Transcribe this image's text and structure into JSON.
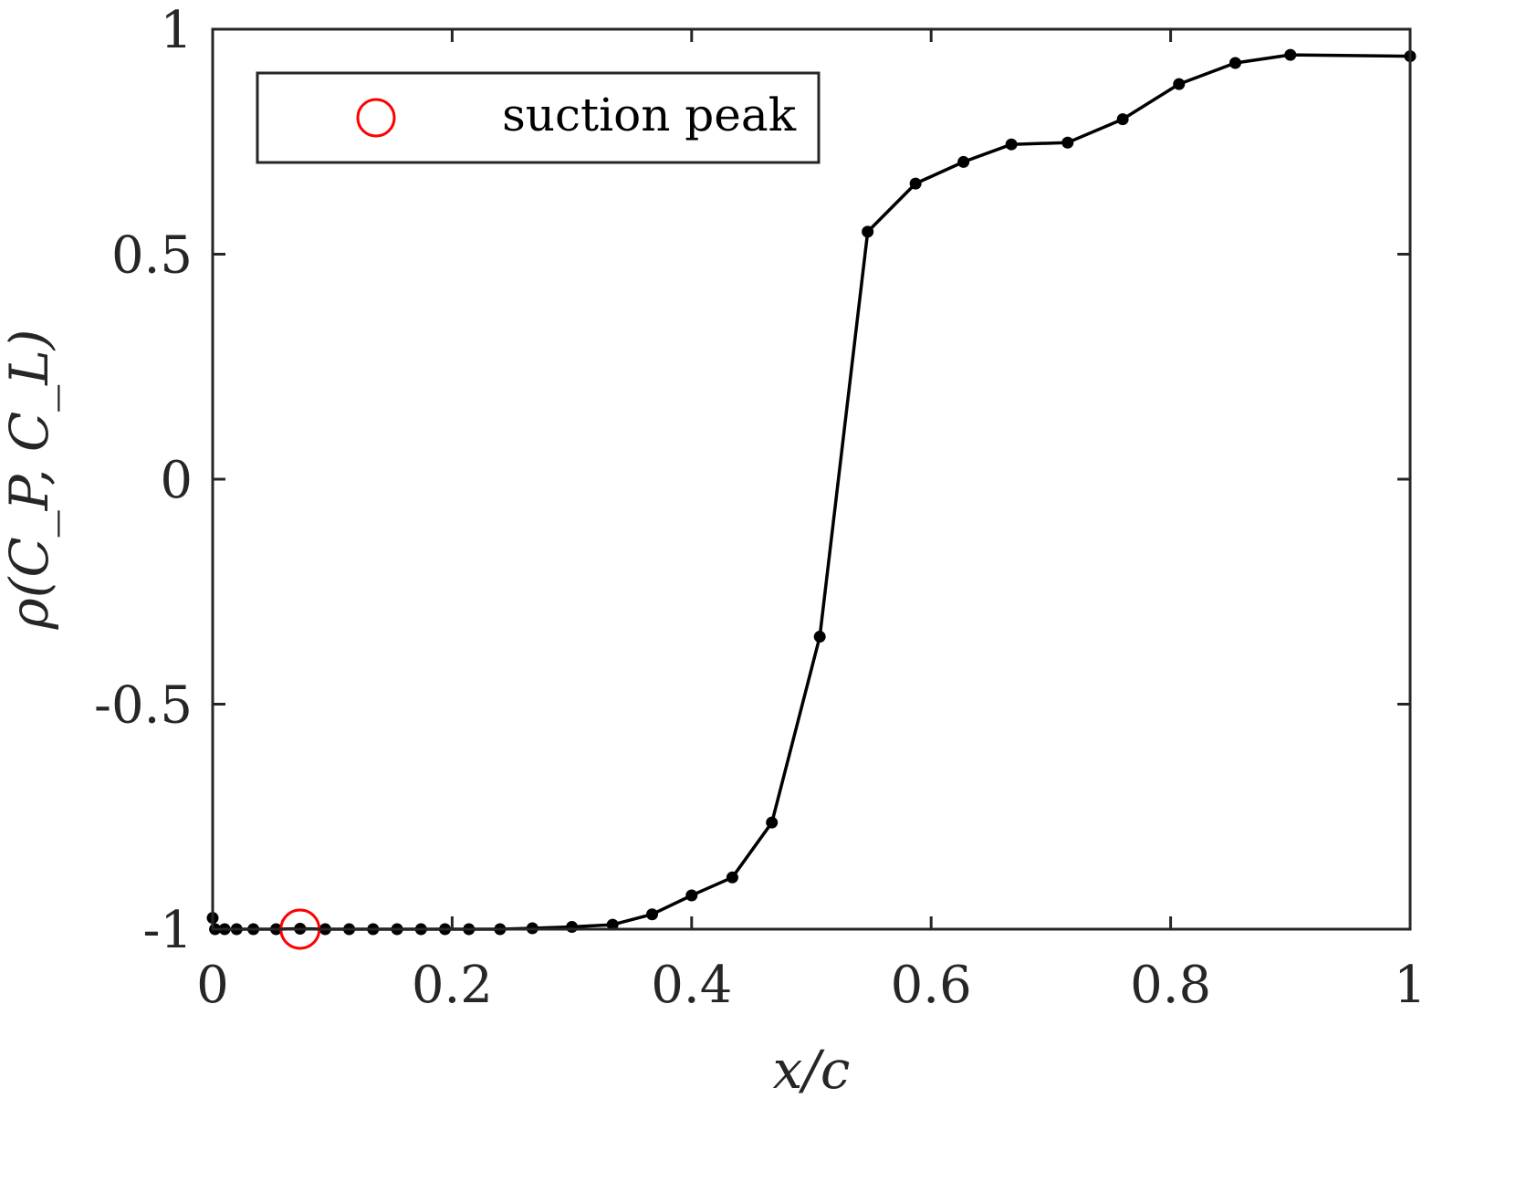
{
  "chart_data": {
    "type": "line",
    "xlabel": "x/c",
    "ylabel": "ρ(C_P, C_L)",
    "xlim": [
      0,
      1
    ],
    "ylim": [
      -1,
      1
    ],
    "xticks": [
      "0",
      "0.2",
      "0.4",
      "0.6",
      "0.8",
      "1"
    ],
    "yticks": [
      "-1",
      "-0.5",
      "0",
      "0.5",
      "1"
    ],
    "grid": false,
    "legend_position": "top-left",
    "series": [
      {
        "marker": "filled-circle",
        "color": "#000000",
        "x": [
          0.0,
          0.002,
          0.01,
          0.02,
          0.034,
          0.053,
          0.073,
          0.094,
          0.114,
          0.134,
          0.154,
          0.174,
          0.194,
          0.214,
          0.24,
          0.267,
          0.3,
          0.334,
          0.367,
          0.4,
          0.434,
          0.467,
          0.507,
          0.547,
          0.587,
          0.627,
          0.667,
          0.714,
          0.76,
          0.807,
          0.854,
          0.9,
          1.0
        ],
        "y": [
          -0.975,
          -1.0,
          -1.0,
          -1.0,
          -1.0,
          -1.0,
          -0.999,
          -1.0,
          -1.0,
          -1.0,
          -1.0,
          -1.0,
          -1.0,
          -1.0,
          -1.0,
          -0.998,
          -0.995,
          -0.99,
          -0.967,
          -0.925,
          -0.885,
          -0.763,
          -0.35,
          0.55,
          0.657,
          0.705,
          0.744,
          0.748,
          0.8,
          0.878,
          0.925,
          0.943,
          0.94
        ]
      },
      {
        "name": "suction peak",
        "marker": "open-circle",
        "color": "#ff0000",
        "x": [
          0.073
        ],
        "y": [
          -1.0
        ]
      }
    ],
    "legend": [
      {
        "label": "suction peak",
        "marker": "open-circle",
        "color": "#ff0000"
      }
    ]
  }
}
